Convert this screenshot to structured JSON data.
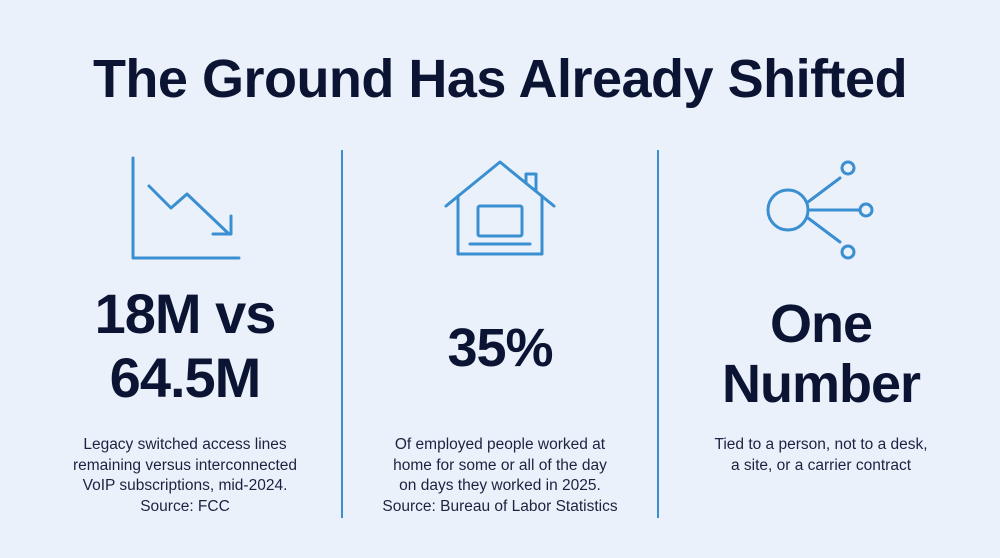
{
  "title": "The Ground Has Already Shifted",
  "accent_color": "#3a8fd0",
  "text_color": "#0b1433",
  "background_color": "#eaf1fb",
  "panels": [
    {
      "icon": "trending-down-chart-icon",
      "stat_line1": "18M vs",
      "stat_line2": "64.5M",
      "desc_lines": [
        "Legacy switched access lines",
        "remaining versus interconnected",
        "VoIP subscriptions, mid-2024.",
        "Source: FCC"
      ]
    },
    {
      "icon": "house-laptop-icon",
      "stat_line1": "35%",
      "desc_lines": [
        "Of employed people worked at",
        "home for some or all of the day",
        "on days they worked in 2025.",
        "Source: Bureau of Labor Statistics"
      ]
    },
    {
      "icon": "hub-connections-icon",
      "stat_line1": "One",
      "stat_line2": "Number",
      "desc_lines": [
        "Tied to a person, not to a desk,",
        "a site, or a carrier contract"
      ]
    }
  ]
}
